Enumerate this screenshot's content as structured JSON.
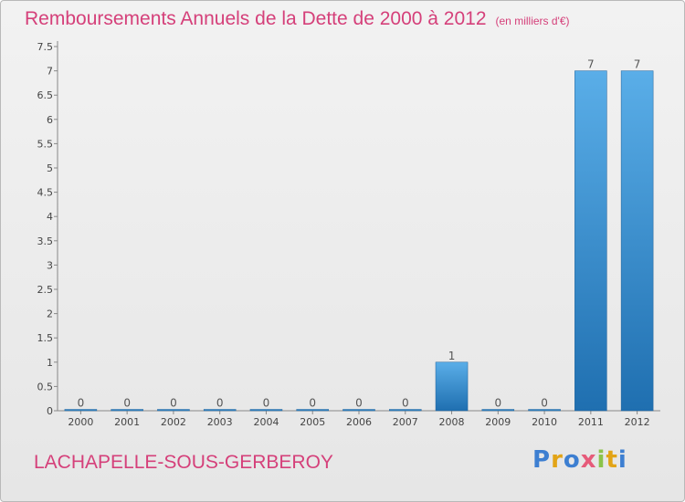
{
  "header": {
    "title": "Remboursements Annuels de la Dette de 2000 à 2012",
    "subtitle": "(en milliers d'€)"
  },
  "footer": {
    "commune": "LACHAPELLE-SOUS-GERBEROY",
    "logo_text": "Proxiti"
  },
  "colors": {
    "title": "#d5407a",
    "bar_top": "#5aaee8",
    "bar_bottom": "#1f6fb0"
  },
  "chart_data": {
    "type": "bar",
    "title": "Remboursements Annuels de la Dette de 2000 à 2012",
    "subtitle": "(en milliers d'€)",
    "categories": [
      "2000",
      "2001",
      "2002",
      "2003",
      "2004",
      "2005",
      "2006",
      "2007",
      "2008",
      "2009",
      "2010",
      "2011",
      "2012"
    ],
    "values": [
      0,
      0,
      0,
      0,
      0,
      0,
      0,
      0,
      1,
      0,
      0,
      7,
      7
    ],
    "value_labels": [
      "0",
      "0",
      "0",
      "0",
      "0",
      "0",
      "0",
      "0",
      "1",
      "0",
      "0",
      "7",
      "7"
    ],
    "ylim": [
      0,
      7.5
    ],
    "yticks": [
      0,
      0.5,
      1,
      1.5,
      2,
      2.5,
      3,
      3.5,
      4,
      4.5,
      5,
      5.5,
      6,
      6.5,
      7,
      7.5
    ],
    "ytick_labels": [
      "0",
      "0.5",
      "1",
      "1.5",
      "2",
      "2.5",
      "3",
      "3.5",
      "4",
      "4.5",
      "5",
      "5.5",
      "6",
      "6.5",
      "7",
      "7.5"
    ],
    "xlabel": "",
    "ylabel": "",
    "grid": false,
    "legend": "none"
  }
}
